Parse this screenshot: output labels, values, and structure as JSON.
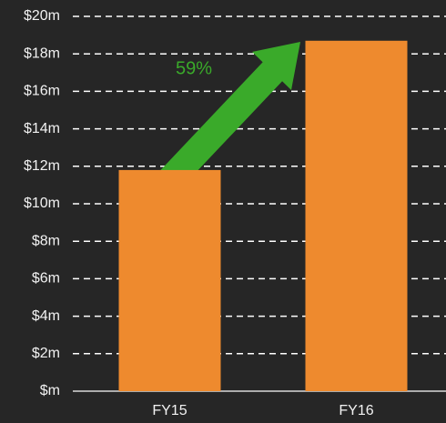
{
  "chart_data": {
    "type": "bar",
    "categories": [
      "FY15",
      "FY16"
    ],
    "values": [
      11.8,
      18.7
    ],
    "color": "#ee8a2e",
    "annotation": "59%",
    "ylim": [
      0,
      20
    ],
    "yticks": [
      {
        "value": 0,
        "label": "$m"
      },
      {
        "value": 2,
        "label": "$2m"
      },
      {
        "value": 4,
        "label": "$4m"
      },
      {
        "value": 6,
        "label": "$6m"
      },
      {
        "value": 8,
        "label": "$8m"
      },
      {
        "value": 10,
        "label": "$10m"
      },
      {
        "value": 12,
        "label": "$12m"
      },
      {
        "value": 14,
        "label": "$14m"
      },
      {
        "value": 16,
        "label": "$16m"
      },
      {
        "value": 18,
        "label": "$18m"
      },
      {
        "value": 20,
        "label": "$20m"
      }
    ],
    "grid": true
  }
}
